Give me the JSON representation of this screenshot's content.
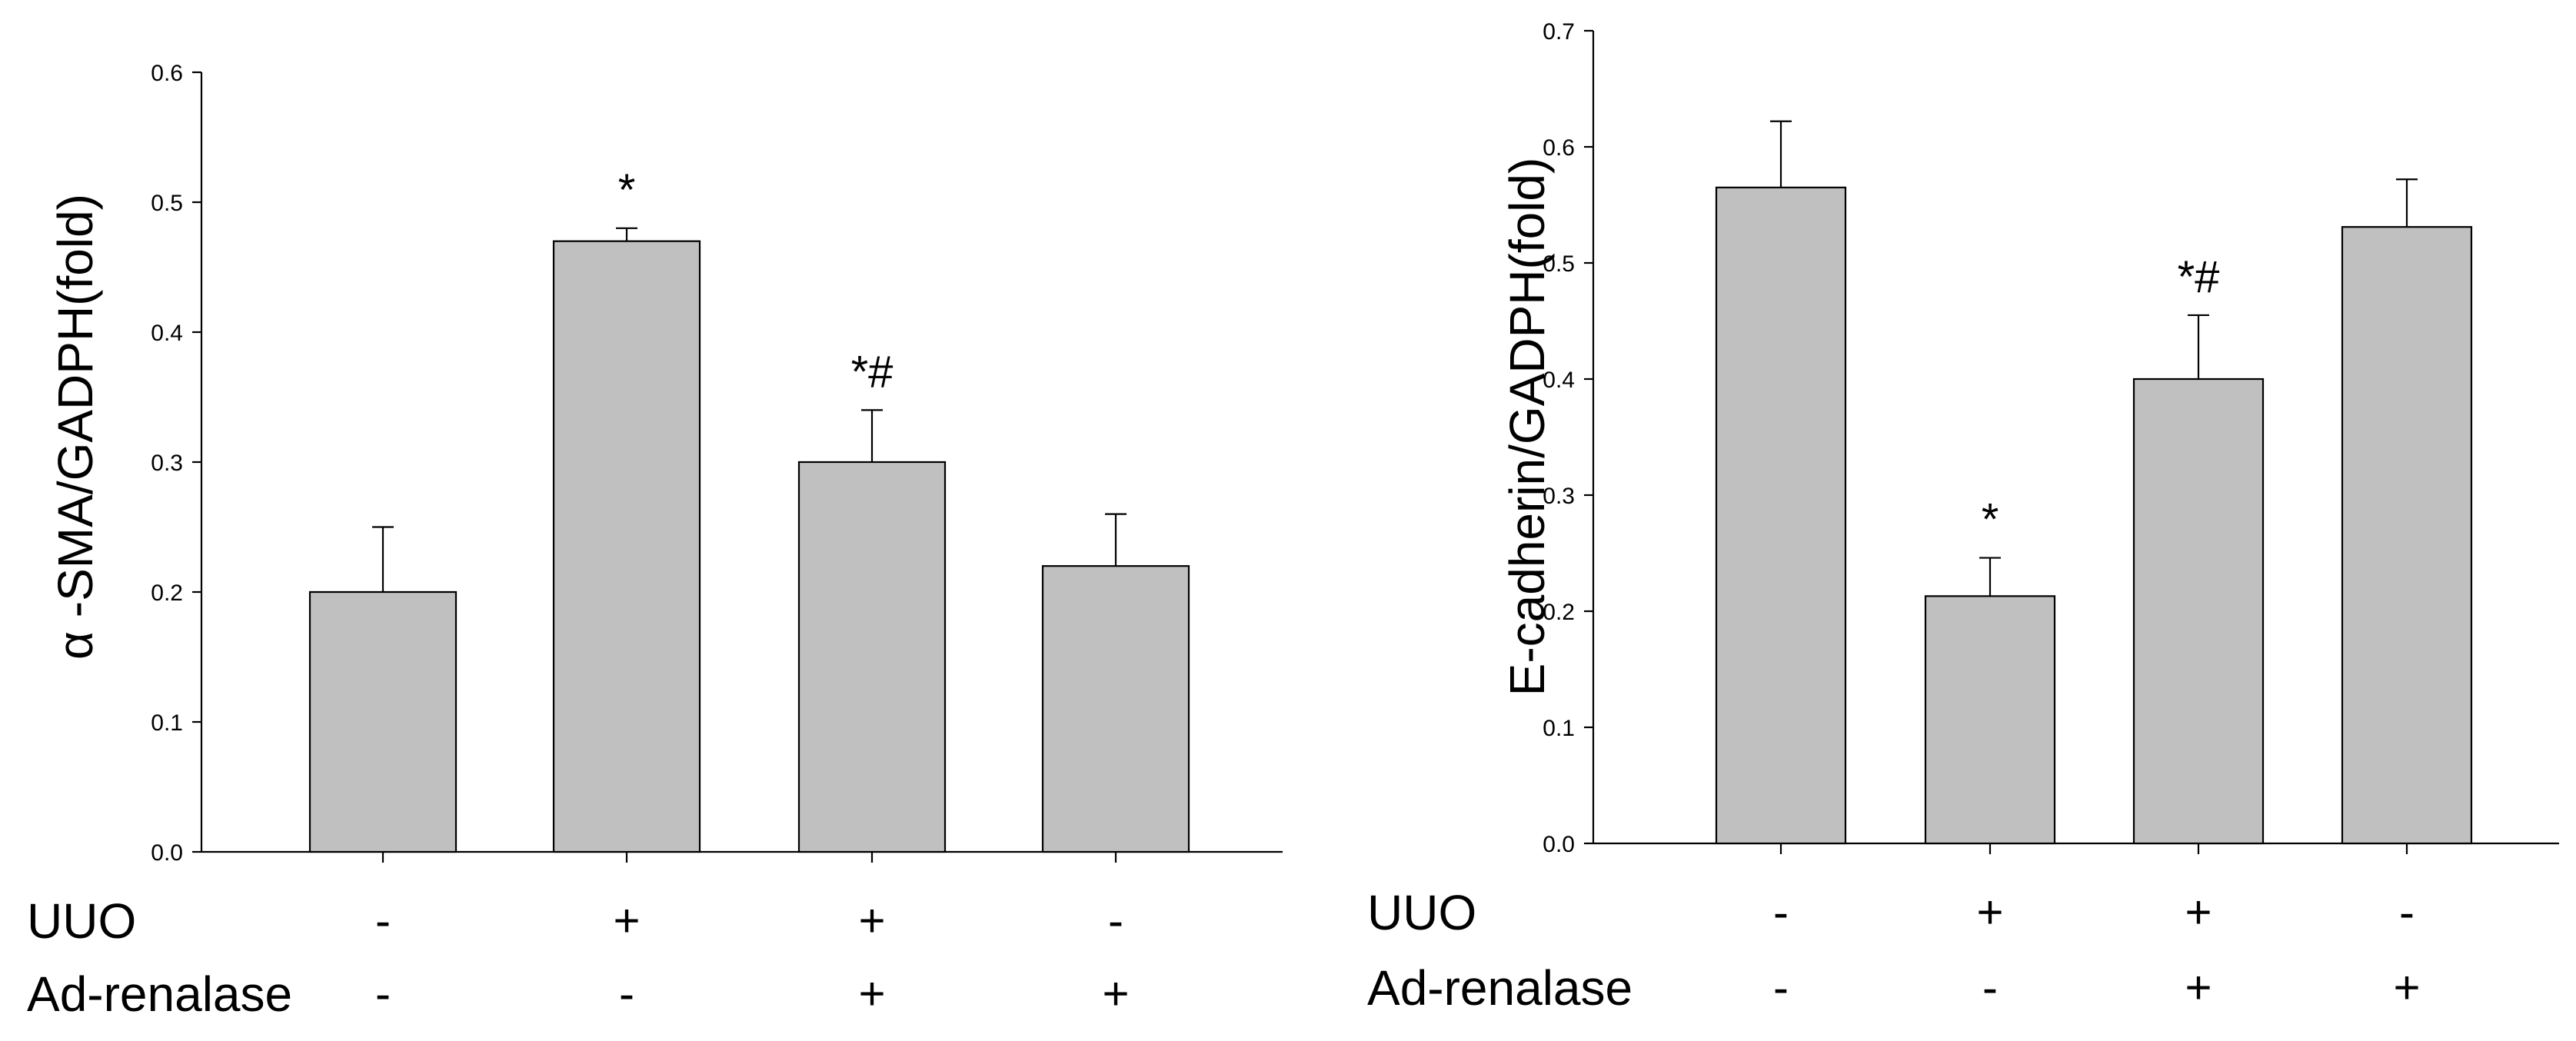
{
  "chart_data": [
    {
      "type": "bar",
      "title": "",
      "xlabel": "",
      "ylabel": "α -SMA/GADPH(fold)",
      "ylim": [
        0,
        0.6
      ],
      "yticks": [
        "0.0",
        "0.1",
        "0.2",
        "0.3",
        "0.4",
        "0.5",
        "0.6"
      ],
      "ytick_values": [
        0.0,
        0.1,
        0.2,
        0.3,
        0.4,
        0.5,
        0.6
      ],
      "grid": false,
      "bar_color": "#c0c0c0",
      "values": [
        0.2,
        0.47,
        0.3,
        0.22
      ],
      "errors": [
        0.05,
        0.01,
        0.04,
        0.04
      ],
      "annotations": [
        "",
        "*",
        "*#",
        ""
      ],
      "rows": [
        {
          "label": "UUO",
          "signs": [
            "-",
            "+",
            "+",
            "-"
          ]
        },
        {
          "label": "Ad-renalase",
          "signs": [
            "-",
            "-",
            "+",
            "+"
          ]
        }
      ]
    },
    {
      "type": "bar",
      "title": "",
      "xlabel": "",
      "ylabel": "E-cadherin/GADPH(fold)",
      "ylim": [
        0,
        0.7
      ],
      "yticks": [
        "0.0",
        "0.1",
        "0.2",
        "0.3",
        "0.4",
        "0.5",
        "0.6",
        "0.7"
      ],
      "ytick_values": [
        0.0,
        0.1,
        0.2,
        0.3,
        0.4,
        0.5,
        0.6,
        0.7
      ],
      "grid": false,
      "bar_color": "#c0c0c0",
      "values": [
        0.565,
        0.213,
        0.4,
        0.531
      ],
      "errors": [
        0.057,
        0.033,
        0.055,
        0.041
      ],
      "annotations": [
        "",
        "*",
        "*#",
        ""
      ],
      "rows": [
        {
          "label": "UUO",
          "signs": [
            "-",
            "+",
            "+",
            "-"
          ]
        },
        {
          "label": "Ad-renalase",
          "signs": [
            "-",
            "-",
            "+",
            "+"
          ]
        }
      ]
    }
  ]
}
